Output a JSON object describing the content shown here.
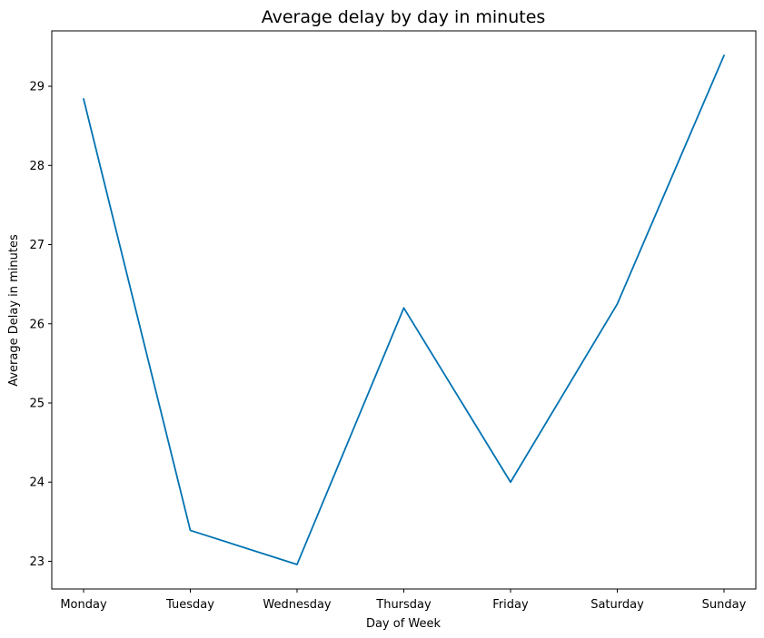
{
  "chart_data": {
    "type": "line",
    "title": "Average delay by day in minutes",
    "xlabel": "Day of Week",
    "ylabel": "Average Delay in minutes",
    "categories": [
      "Monday",
      "Tuesday",
      "Wednesday",
      "Thursday",
      "Friday",
      "Saturday",
      "Sunday"
    ],
    "series": [
      {
        "values": [
          28.84,
          23.39,
          22.96,
          26.2,
          24.0,
          26.25,
          29.39
        ],
        "color": "#0072b2"
      }
    ],
    "yticks": [
      23,
      24,
      25,
      26,
      27,
      28,
      29
    ],
    "ylim": [
      22.65,
      29.7
    ],
    "grid": false,
    "legend": "none"
  }
}
